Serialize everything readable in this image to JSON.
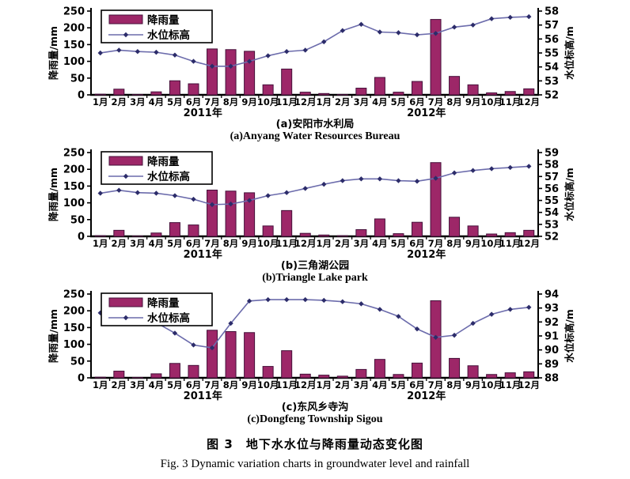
{
  "figure": {
    "caption_zh": "图 3　地下水水位与降雨量动态变化图",
    "caption_en": "Fig. 3 Dynamic variation charts in groundwater level and rainfall"
  },
  "colors": {
    "bar_fill": "#9d2768",
    "bar_border": "#45103a",
    "line": "#6c6cac",
    "marker": "#2c2c6a",
    "axis": "#000000"
  },
  "chart_data": [
    {
      "type": "bar+line",
      "subtitle_zh": "(a)安阳市水利局",
      "subtitle_en": "(a)Anyang Water Resources Bureau",
      "ylabel_left": "降雨量/mm",
      "ylabel_right": "水位标高/m",
      "ylim_left": [
        0,
        250
      ],
      "yticks_left": [
        0,
        50,
        100,
        150,
        200,
        250
      ],
      "ylim_right": [
        52,
        58
      ],
      "yticks_right": [
        52,
        53,
        54,
        55,
        56,
        57,
        58
      ],
      "legend": [
        "降雨量",
        "水位标高"
      ],
      "year_labels": [
        "2011年",
        "2012年"
      ],
      "categories": [
        "1月",
        "2月",
        "3月",
        "4月",
        "5月",
        "6月",
        "7月",
        "8月",
        "9月",
        "10月",
        "11月",
        "12月",
        "1月",
        "2月",
        "3月",
        "4月",
        "5月",
        "6月",
        "7月",
        "8月",
        "9月",
        "10月",
        "11月",
        "12月"
      ],
      "series": [
        {
          "name": "降雨量",
          "type": "bar",
          "axis": "left",
          "values": [
            2,
            17,
            1,
            9,
            42,
            33,
            137,
            135,
            130,
            30,
            77,
            8,
            4,
            1,
            20,
            52,
            8,
            40,
            225,
            55,
            30,
            6,
            10,
            18
          ]
        },
        {
          "name": "水位标高",
          "type": "line",
          "axis": "right",
          "values": [
            55.0,
            55.2,
            55.1,
            55.05,
            54.85,
            54.4,
            54.05,
            54.05,
            54.4,
            54.8,
            55.1,
            55.2,
            55.8,
            56.6,
            57.05,
            56.5,
            56.45,
            56.3,
            56.4,
            56.85,
            57.0,
            57.45,
            57.55,
            57.6
          ]
        }
      ]
    },
    {
      "type": "bar+line",
      "subtitle_zh": "(b)三角湖公园",
      "subtitle_en": "(b)Triangle Lake park",
      "ylabel_left": "降雨量/mm",
      "ylabel_right": "水位标高/m",
      "ylim_left": [
        0,
        250
      ],
      "yticks_left": [
        0,
        50,
        100,
        150,
        200,
        250
      ],
      "ylim_right": [
        52,
        59
      ],
      "yticks_right": [
        52,
        53,
        54,
        55,
        56,
        57,
        58,
        59
      ],
      "legend": [
        "降雨量",
        "水位标高"
      ],
      "year_labels": [
        "2011年",
        "2012年"
      ],
      "categories": [
        "1月",
        "2月",
        "3月",
        "4月",
        "5月",
        "6月",
        "7月",
        "8月",
        "9月",
        "10月",
        "11月",
        "12月",
        "1月",
        "2月",
        "3月",
        "4月",
        "5月",
        "6月",
        "7月",
        "8月",
        "9月",
        "10月",
        "11月",
        "12月"
      ],
      "series": [
        {
          "name": "降雨量",
          "type": "bar",
          "axis": "left",
          "values": [
            2,
            18,
            1,
            10,
            41,
            34,
            138,
            135,
            130,
            31,
            77,
            9,
            4,
            2,
            20,
            52,
            8,
            42,
            220,
            57,
            31,
            7,
            11,
            18
          ]
        },
        {
          "name": "水位标高",
          "type": "line",
          "axis": "right",
          "values": [
            55.6,
            55.85,
            55.65,
            55.6,
            55.4,
            55.1,
            54.65,
            54.7,
            55.0,
            55.4,
            55.65,
            56.0,
            56.35,
            56.65,
            56.8,
            56.8,
            56.65,
            56.6,
            56.85,
            57.3,
            57.5,
            57.65,
            57.75,
            57.85
          ]
        }
      ]
    },
    {
      "type": "bar+line",
      "subtitle_zh": "(c)东风乡寺沟",
      "subtitle_en": "(c)Dongfeng Township Sigou",
      "ylabel_left": "降雨量/mm",
      "ylabel_right": "水位标高/m",
      "ylim_left": [
        0,
        250
      ],
      "yticks_left": [
        0,
        50,
        100,
        150,
        200,
        250
      ],
      "ylim_right": [
        88,
        94
      ],
      "yticks_right": [
        88,
        89,
        90,
        91,
        92,
        93,
        94
      ],
      "legend": [
        "降雨量",
        "水位标高"
      ],
      "year_labels": [
        "2011年",
        "2012年"
      ],
      "categories": [
        "1月",
        "2月",
        "3月",
        "4月",
        "5月",
        "6月",
        "7月",
        "8月",
        "9月",
        "10月",
        "11月",
        "12月",
        "1月",
        "2月",
        "3月",
        "4月",
        "5月",
        "6月",
        "7月",
        "8月",
        "9月",
        "10月",
        "11月",
        "12月"
      ],
      "series": [
        {
          "name": "降雨量",
          "type": "bar",
          "axis": "left",
          "values": [
            2,
            20,
            1,
            12,
            43,
            37,
            142,
            138,
            135,
            34,
            81,
            11,
            8,
            5,
            25,
            55,
            10,
            44,
            230,
            58,
            36,
            10,
            15,
            18
          ]
        },
        {
          "name": "水位标高",
          "type": "line",
          "axis": "right",
          "values": [
            92.65,
            92.55,
            92.45,
            91.95,
            91.2,
            90.35,
            90.15,
            91.9,
            93.5,
            93.6,
            93.6,
            93.6,
            93.55,
            93.45,
            93.3,
            92.9,
            92.4,
            91.5,
            90.9,
            91.05,
            91.9,
            92.55,
            92.9,
            93.05
          ]
        }
      ]
    }
  ]
}
